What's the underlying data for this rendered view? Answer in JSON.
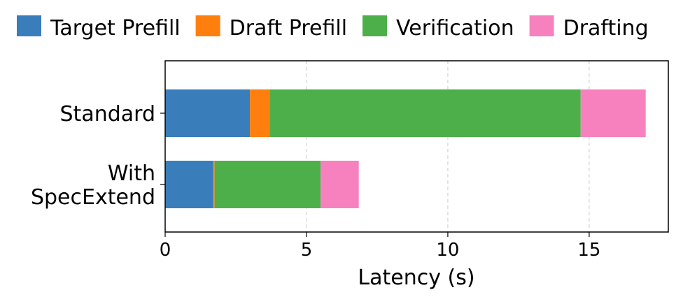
{
  "chart_data": {
    "type": "bar",
    "orientation": "horizontal",
    "stacked": true,
    "categories": [
      "Standard",
      "With\nSpecExtend"
    ],
    "series": [
      {
        "name": "Target Prefill",
        "color": "#3a7dbb",
        "values": [
          3.0,
          1.7
        ]
      },
      {
        "name": "Draft Prefill",
        "color": "#ff7f0e",
        "values": [
          0.7,
          0.05
        ]
      },
      {
        "name": "Verification",
        "color": "#4daf4a",
        "values": [
          11.0,
          3.75
        ]
      },
      {
        "name": "Drafting",
        "color": "#f781bf",
        "values": [
          2.3,
          1.35
        ]
      }
    ],
    "xlabel": "Latency (s)",
    "ylabel": "",
    "xlim": [
      0,
      17.8
    ],
    "xticks": [
      0,
      5,
      10,
      15
    ],
    "grid": "x-dashed",
    "legend": "top"
  }
}
